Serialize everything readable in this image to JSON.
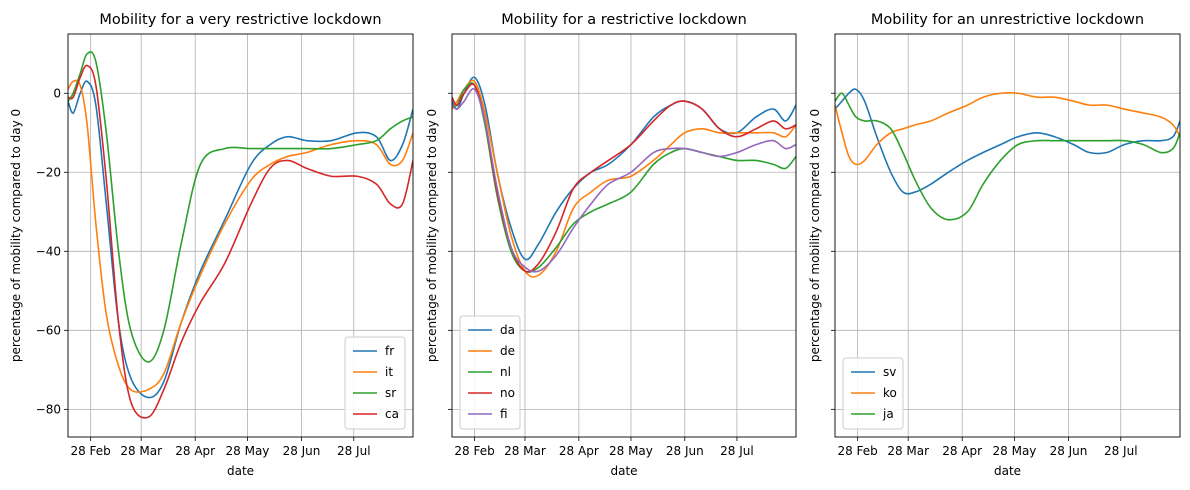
{
  "chart_data": [
    {
      "type": "line",
      "title": "Mobility for a very restrictive lockdown",
      "xlabel": "date",
      "ylabel": "percentage of mobility compared to day 0",
      "x_start": "2020-02-15",
      "x_end": "2020-08-31",
      "x_ticks": [
        {
          "date": "2020-02-28",
          "label": "28 Feb"
        },
        {
          "date": "2020-03-28",
          "label": "28 Mar"
        },
        {
          "date": "2020-04-28",
          "label": "28 Apr"
        },
        {
          "date": "2020-05-28",
          "label": "28 May"
        },
        {
          "date": "2020-06-28",
          "label": "28 Jun"
        },
        {
          "date": "2020-07-28",
          "label": "28 Jul"
        }
      ],
      "ylim": [
        -87,
        15
      ],
      "y_ticks": [
        0,
        -20,
        -40,
        -60,
        -80
      ],
      "y_tick_labels": [
        "0",
        "−20",
        "−40",
        "−60",
        "−80"
      ],
      "show_y_tick_labels": true,
      "grid": true,
      "legend": "lower-right",
      "series": [
        {
          "name": "fr",
          "color": "#1f77b4",
          "x": [
            "2020-02-15",
            "2020-02-18",
            "2020-02-22",
            "2020-02-26",
            "2020-03-02",
            "2020-03-08",
            "2020-03-15",
            "2020-03-22",
            "2020-04-01",
            "2020-04-10",
            "2020-04-20",
            "2020-05-01",
            "2020-05-15",
            "2020-05-30",
            "2020-06-10",
            "2020-06-20",
            "2020-07-01",
            "2020-07-15",
            "2020-07-30",
            "2020-08-10",
            "2020-08-18",
            "2020-08-25",
            "2020-08-31"
          ],
          "y": [
            -2,
            -5,
            0,
            3,
            -3,
            -28,
            -58,
            -72,
            -77,
            -73,
            -58,
            -45,
            -32,
            -18,
            -13,
            -11,
            -12,
            -12,
            -10,
            -11,
            -17,
            -13,
            -4
          ]
        },
        {
          "name": "it",
          "color": "#ff7f0e",
          "x": [
            "2020-02-15",
            "2020-02-18",
            "2020-02-22",
            "2020-02-26",
            "2020-03-02",
            "2020-03-08",
            "2020-03-15",
            "2020-03-22",
            "2020-04-01",
            "2020-04-10",
            "2020-04-20",
            "2020-05-01",
            "2020-05-15",
            "2020-05-30",
            "2020-06-10",
            "2020-06-20",
            "2020-07-01",
            "2020-07-15",
            "2020-07-30",
            "2020-08-10",
            "2020-08-18",
            "2020-08-25",
            "2020-08-31"
          ],
          "y": [
            1,
            3,
            2,
            -8,
            -33,
            -56,
            -69,
            -75,
            -75,
            -71,
            -58,
            -46,
            -33,
            -22,
            -18,
            -16,
            -15,
            -13,
            -12,
            -13,
            -18,
            -17,
            -10
          ]
        },
        {
          "name": "sr",
          "color": "#2ca02c",
          "x": [
            "2020-02-15",
            "2020-02-18",
            "2020-02-22",
            "2020-02-26",
            "2020-03-02",
            "2020-03-08",
            "2020-03-15",
            "2020-03-22",
            "2020-04-01",
            "2020-04-10",
            "2020-04-20",
            "2020-05-01",
            "2020-05-15",
            "2020-05-30",
            "2020-06-10",
            "2020-06-20",
            "2020-07-01",
            "2020-07-15",
            "2020-07-30",
            "2020-08-10",
            "2020-08-18",
            "2020-08-25",
            "2020-08-31"
          ],
          "y": [
            -2,
            0,
            5,
            10,
            8,
            -10,
            -40,
            -60,
            -68,
            -60,
            -38,
            -18,
            -14,
            -14,
            -14,
            -14,
            -14,
            -14,
            -13,
            -12,
            -9,
            -7,
            -6
          ]
        },
        {
          "name": "ca",
          "color": "#d62728",
          "x": [
            "2020-02-15",
            "2020-02-18",
            "2020-02-22",
            "2020-02-26",
            "2020-03-02",
            "2020-03-08",
            "2020-03-15",
            "2020-03-22",
            "2020-04-01",
            "2020-04-10",
            "2020-04-20",
            "2020-05-01",
            "2020-05-15",
            "2020-05-30",
            "2020-06-10",
            "2020-06-20",
            "2020-07-01",
            "2020-07-15",
            "2020-07-30",
            "2020-08-10",
            "2020-08-18",
            "2020-08-25",
            "2020-08-31"
          ],
          "y": [
            -1,
            -1,
            4,
            7,
            2,
            -22,
            -58,
            -78,
            -82,
            -75,
            -63,
            -53,
            -43,
            -28,
            -19,
            -17,
            -19,
            -21,
            -21,
            -23,
            -28,
            -28,
            -17
          ]
        }
      ]
    },
    {
      "type": "line",
      "title": "Mobility for a restrictive lockdown",
      "xlabel": "date",
      "ylabel": "percentage of mobility compared to day 0",
      "x_start": "2020-02-15",
      "x_end": "2020-08-31",
      "x_ticks": [
        {
          "date": "2020-02-28",
          "label": "28 Feb"
        },
        {
          "date": "2020-03-28",
          "label": "28 Mar"
        },
        {
          "date": "2020-04-28",
          "label": "28 Apr"
        },
        {
          "date": "2020-05-28",
          "label": "28 May"
        },
        {
          "date": "2020-06-28",
          "label": "28 Jun"
        },
        {
          "date": "2020-07-28",
          "label": "28 Jul"
        }
      ],
      "ylim": [
        -87,
        15
      ],
      "y_ticks": [
        0,
        -20,
        -40,
        -60,
        -80
      ],
      "show_y_tick_labels": false,
      "grid": true,
      "legend": "lower-left",
      "series": [
        {
          "name": "da",
          "color": "#1f77b4",
          "x": [
            "2020-02-15",
            "2020-02-18",
            "2020-02-22",
            "2020-02-28",
            "2020-03-05",
            "2020-03-12",
            "2020-03-20",
            "2020-03-28",
            "2020-04-05",
            "2020-04-15",
            "2020-04-25",
            "2020-05-05",
            "2020-05-15",
            "2020-05-28",
            "2020-06-10",
            "2020-06-20",
            "2020-06-28",
            "2020-07-08",
            "2020-07-18",
            "2020-07-28",
            "2020-08-08",
            "2020-08-18",
            "2020-08-25",
            "2020-08-31"
          ],
          "y": [
            -2,
            -4,
            0,
            4,
            -3,
            -20,
            -34,
            -42,
            -38,
            -30,
            -24,
            -20,
            -18,
            -13,
            -6,
            -3,
            -2,
            -4,
            -9,
            -10,
            -6,
            -4,
            -7,
            -3
          ]
        },
        {
          "name": "de",
          "color": "#ff7f0e",
          "x": [
            "2020-02-15",
            "2020-02-18",
            "2020-02-22",
            "2020-02-28",
            "2020-03-05",
            "2020-03-12",
            "2020-03-20",
            "2020-03-28",
            "2020-04-05",
            "2020-04-15",
            "2020-04-25",
            "2020-05-05",
            "2020-05-15",
            "2020-05-28",
            "2020-06-10",
            "2020-06-20",
            "2020-06-28",
            "2020-07-08",
            "2020-07-18",
            "2020-07-28",
            "2020-08-08",
            "2020-08-18",
            "2020-08-25",
            "2020-08-31"
          ],
          "y": [
            -4,
            -2,
            1,
            3,
            -5,
            -20,
            -36,
            -45,
            -46,
            -40,
            -29,
            -25,
            -22,
            -21,
            -17,
            -13,
            -10,
            -9,
            -10,
            -10,
            -10,
            -10,
            -11,
            -8
          ]
        },
        {
          "name": "nl",
          "color": "#2ca02c",
          "x": [
            "2020-02-15",
            "2020-02-18",
            "2020-02-22",
            "2020-02-28",
            "2020-03-05",
            "2020-03-12",
            "2020-03-20",
            "2020-03-28",
            "2020-04-05",
            "2020-04-15",
            "2020-04-25",
            "2020-05-05",
            "2020-05-15",
            "2020-05-28",
            "2020-06-10",
            "2020-06-20",
            "2020-06-28",
            "2020-07-08",
            "2020-07-18",
            "2020-07-28",
            "2020-08-08",
            "2020-08-18",
            "2020-08-25",
            "2020-08-31"
          ],
          "y": [
            -3,
            -3,
            1,
            2,
            -8,
            -26,
            -40,
            -45,
            -44,
            -39,
            -33,
            -30,
            -28,
            -25,
            -18,
            -15,
            -14,
            -15,
            -16,
            -17,
            -17,
            -18,
            -19,
            -16
          ]
        },
        {
          "name": "no",
          "color": "#d62728",
          "x": [
            "2020-02-15",
            "2020-02-18",
            "2020-02-22",
            "2020-02-28",
            "2020-03-05",
            "2020-03-12",
            "2020-03-20",
            "2020-03-28",
            "2020-04-05",
            "2020-04-15",
            "2020-04-25",
            "2020-05-05",
            "2020-05-15",
            "2020-05-28",
            "2020-06-10",
            "2020-06-20",
            "2020-06-28",
            "2020-07-08",
            "2020-07-18",
            "2020-07-28",
            "2020-08-08",
            "2020-08-18",
            "2020-08-25",
            "2020-08-31"
          ],
          "y": [
            -1,
            -3,
            0,
            2,
            -7,
            -25,
            -39,
            -45,
            -43,
            -35,
            -24,
            -20,
            -17,
            -13,
            -7,
            -3,
            -2,
            -4,
            -9,
            -11,
            -9,
            -7,
            -9,
            -8
          ]
        },
        {
          "name": "fi",
          "color": "#9467bd",
          "x": [
            "2020-02-15",
            "2020-02-18",
            "2020-02-22",
            "2020-02-28",
            "2020-03-05",
            "2020-03-12",
            "2020-03-20",
            "2020-03-28",
            "2020-04-05",
            "2020-04-15",
            "2020-04-25",
            "2020-05-05",
            "2020-05-15",
            "2020-05-28",
            "2020-06-10",
            "2020-06-20",
            "2020-06-28",
            "2020-07-08",
            "2020-07-18",
            "2020-07-28",
            "2020-08-08",
            "2020-08-18",
            "2020-08-25",
            "2020-08-31"
          ],
          "y": [
            -3,
            -4,
            -2,
            1,
            -7,
            -24,
            -39,
            -44,
            -45,
            -41,
            -34,
            -28,
            -23,
            -20,
            -15,
            -14,
            -14,
            -15,
            -16,
            -15,
            -13,
            -12,
            -14,
            -13
          ]
        }
      ]
    },
    {
      "type": "line",
      "title": "Mobility for an unrestrictive lockdown",
      "xlabel": "date",
      "ylabel": "percentage of mobility compared to day 0",
      "x_start": "2020-02-15",
      "x_end": "2020-08-31",
      "x_ticks": [
        {
          "date": "2020-02-28",
          "label": "28 Feb"
        },
        {
          "date": "2020-03-28",
          "label": "28 Mar"
        },
        {
          "date": "2020-04-28",
          "label": "28 Apr"
        },
        {
          "date": "2020-05-28",
          "label": "28 May"
        },
        {
          "date": "2020-06-28",
          "label": "28 Jun"
        },
        {
          "date": "2020-07-28",
          "label": "28 Jul"
        }
      ],
      "ylim": [
        -87,
        15
      ],
      "y_ticks": [
        0,
        -20,
        -40,
        -60,
        -80
      ],
      "show_y_tick_labels": false,
      "grid": true,
      "legend": "lower-left",
      "series": [
        {
          "name": "sv",
          "color": "#1f77b4",
          "x": [
            "2020-02-15",
            "2020-02-19",
            "2020-02-23",
            "2020-02-27",
            "2020-03-03",
            "2020-03-10",
            "2020-03-18",
            "2020-03-25",
            "2020-04-01",
            "2020-04-10",
            "2020-04-20",
            "2020-05-01",
            "2020-05-10",
            "2020-05-20",
            "2020-05-30",
            "2020-06-10",
            "2020-06-20",
            "2020-07-01",
            "2020-07-10",
            "2020-07-20",
            "2020-07-30",
            "2020-08-10",
            "2020-08-20",
            "2020-08-27",
            "2020-08-31"
          ],
          "y": [
            -4,
            -2,
            0,
            1,
            -2,
            -11,
            -20,
            -25,
            -25,
            -23,
            -20,
            -17,
            -15,
            -13,
            -11,
            -10,
            -11,
            -13,
            -15,
            -15,
            -13,
            -12,
            -12,
            -11,
            -7
          ]
        },
        {
          "name": "ko",
          "color": "#ff7f0e",
          "x": [
            "2020-02-15",
            "2020-02-19",
            "2020-02-23",
            "2020-02-27",
            "2020-03-03",
            "2020-03-10",
            "2020-03-18",
            "2020-03-25",
            "2020-04-01",
            "2020-04-10",
            "2020-04-20",
            "2020-05-01",
            "2020-05-10",
            "2020-05-20",
            "2020-05-30",
            "2020-06-10",
            "2020-06-20",
            "2020-07-01",
            "2020-07-10",
            "2020-07-20",
            "2020-07-30",
            "2020-08-10",
            "2020-08-20",
            "2020-08-27",
            "2020-08-31"
          ],
          "y": [
            -3,
            -10,
            -16,
            -18,
            -17,
            -13,
            -10,
            -9,
            -8,
            -7,
            -5,
            -3,
            -1,
            0,
            0,
            -1,
            -1,
            -2,
            -3,
            -3,
            -4,
            -5,
            -6,
            -8,
            -11
          ]
        },
        {
          "name": "ja",
          "color": "#2ca02c",
          "x": [
            "2020-02-15",
            "2020-02-19",
            "2020-02-23",
            "2020-02-27",
            "2020-03-03",
            "2020-03-10",
            "2020-03-18",
            "2020-03-25",
            "2020-04-01",
            "2020-04-10",
            "2020-04-20",
            "2020-05-01",
            "2020-05-10",
            "2020-05-20",
            "2020-05-30",
            "2020-06-10",
            "2020-06-20",
            "2020-07-01",
            "2020-07-10",
            "2020-07-20",
            "2020-07-30",
            "2020-08-10",
            "2020-08-20",
            "2020-08-27",
            "2020-08-31"
          ],
          "y": [
            -2,
            0,
            -3,
            -6,
            -7,
            -7,
            -9,
            -15,
            -22,
            -29,
            -32,
            -30,
            -23,
            -17,
            -13,
            -12,
            -12,
            -12,
            -12,
            -12,
            -12,
            -13,
            -15,
            -14,
            -10
          ]
        }
      ]
    }
  ]
}
